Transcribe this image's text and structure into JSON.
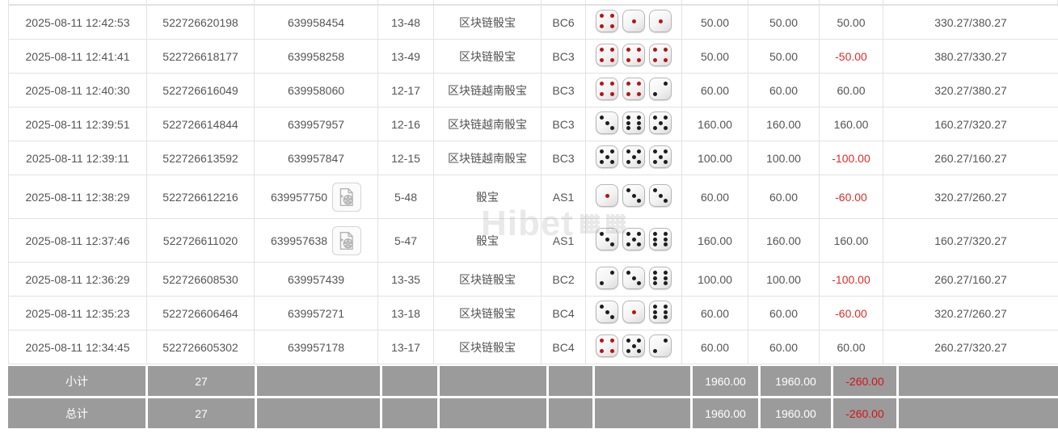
{
  "watermark": {
    "text": "Hibet"
  },
  "colors": {
    "link_blue": "#4171c6",
    "loss_red": "#e02b2b",
    "summary_bg": "#9b9b9b",
    "summary_loss_red": "#d41414",
    "border_gray": "#e2e2e2"
  },
  "table": {
    "rows": [
      {
        "time": "2025-08-11 12:42:53",
        "order_no": "522726620198",
        "game_no": "639958454",
        "has_video": false,
        "period": "13-48",
        "game_name": "区块链骰宝",
        "table_code": "BC6",
        "dice": [
          4,
          1,
          1
        ],
        "bet_amount": "50.00",
        "valid_amount": "50.00",
        "win_loss": "50.00",
        "balance": "330.27/380.27"
      },
      {
        "time": "2025-08-11 12:41:41",
        "order_no": "522726618177",
        "game_no": "639958258",
        "has_video": false,
        "period": "13-49",
        "game_name": "区块链骰宝",
        "table_code": "BC3",
        "dice": [
          4,
          4,
          4
        ],
        "bet_amount": "50.00",
        "valid_amount": "50.00",
        "win_loss": "-50.00",
        "balance": "380.27/330.27"
      },
      {
        "time": "2025-08-11 12:40:30",
        "order_no": "522726616049",
        "game_no": "639958060",
        "has_video": false,
        "period": "12-17",
        "game_name": "区块链越南骰宝",
        "table_code": "BC3",
        "dice": [
          4,
          4,
          2
        ],
        "bet_amount": "60.00",
        "valid_amount": "60.00",
        "win_loss": "60.00",
        "balance": "320.27/380.27"
      },
      {
        "time": "2025-08-11 12:39:51",
        "order_no": "522726614844",
        "game_no": "639957957",
        "has_video": false,
        "period": "12-16",
        "game_name": "区块链越南骰宝",
        "table_code": "BC3",
        "dice": [
          3,
          6,
          5
        ],
        "bet_amount": "160.00",
        "valid_amount": "160.00",
        "win_loss": "160.00",
        "balance": "160.27/320.27"
      },
      {
        "time": "2025-08-11 12:39:11",
        "order_no": "522726613592",
        "game_no": "639957847",
        "has_video": false,
        "period": "12-15",
        "game_name": "区块链越南骰宝",
        "table_code": "BC3",
        "dice": [
          5,
          5,
          5
        ],
        "bet_amount": "100.00",
        "valid_amount": "100.00",
        "win_loss": "-100.00",
        "balance": "260.27/160.27"
      },
      {
        "time": "2025-08-11 12:38:29",
        "order_no": "522726612216",
        "game_no": "639957750",
        "has_video": true,
        "period": "5-48",
        "game_name": "骰宝",
        "table_code": "AS1",
        "dice": [
          1,
          3,
          3
        ],
        "bet_amount": "60.00",
        "valid_amount": "60.00",
        "win_loss": "-60.00",
        "balance": "320.27/260.27"
      },
      {
        "time": "2025-08-11 12:37:46",
        "order_no": "522726611020",
        "game_no": "639957638",
        "has_video": true,
        "period": "5-47",
        "game_name": "骰宝",
        "table_code": "AS1",
        "dice": [
          3,
          5,
          6
        ],
        "bet_amount": "160.00",
        "valid_amount": "160.00",
        "win_loss": "160.00",
        "balance": "160.27/320.27"
      },
      {
        "time": "2025-08-11 12:36:29",
        "order_no": "522726608530",
        "game_no": "639957439",
        "has_video": false,
        "period": "13-35",
        "game_name": "区块链骰宝",
        "table_code": "BC2",
        "dice": [
          2,
          3,
          6
        ],
        "bet_amount": "100.00",
        "valid_amount": "100.00",
        "win_loss": "-100.00",
        "balance": "260.27/160.27"
      },
      {
        "time": "2025-08-11 12:35:23",
        "order_no": "522726606464",
        "game_no": "639957271",
        "has_video": false,
        "period": "13-18",
        "game_name": "区块链骰宝",
        "table_code": "BC4",
        "dice": [
          3,
          1,
          6
        ],
        "bet_amount": "60.00",
        "valid_amount": "60.00",
        "win_loss": "-60.00",
        "balance": "320.27/260.27"
      },
      {
        "time": "2025-08-11 12:34:45",
        "order_no": "522726605302",
        "game_no": "639957178",
        "has_video": false,
        "period": "13-17",
        "game_name": "区块链骰宝",
        "table_code": "BC4",
        "dice": [
          4,
          5,
          2
        ],
        "bet_amount": "60.00",
        "valid_amount": "60.00",
        "win_loss": "60.00",
        "balance": "260.27/320.27"
      }
    ],
    "summary": {
      "subtotal": {
        "label": "小计",
        "count": "27",
        "bet_amount": "1960.00",
        "valid_amount": "1960.00",
        "win_loss": "-260.00"
      },
      "total": {
        "label": "总计",
        "count": "27",
        "bet_amount": "1960.00",
        "valid_amount": "1960.00",
        "win_loss": "-260.00"
      }
    }
  }
}
